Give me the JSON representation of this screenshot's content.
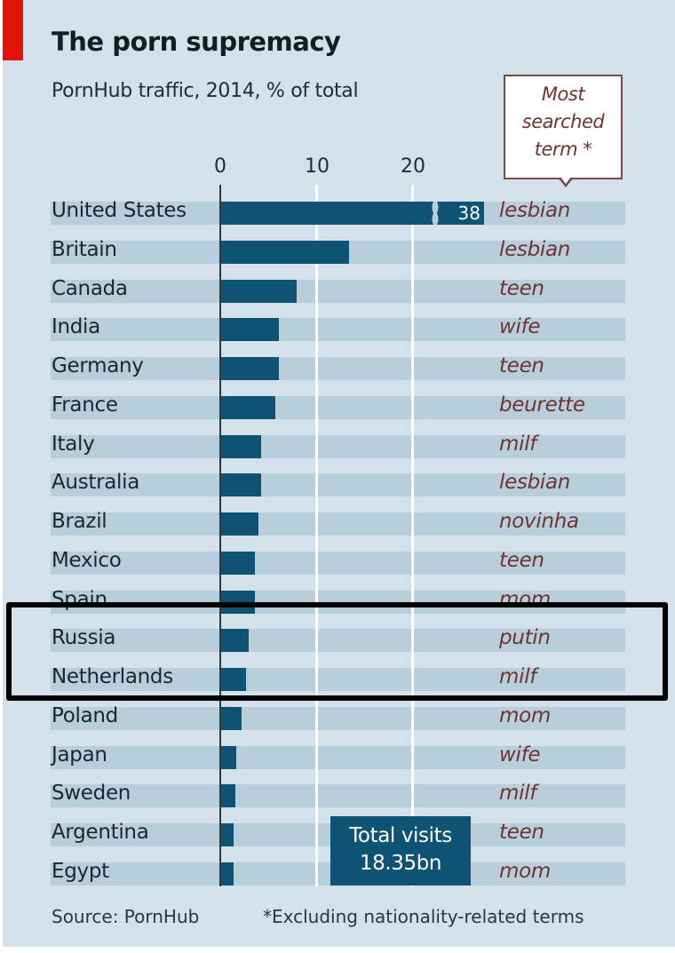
{
  "header": {
    "title": "The porn supremacy",
    "subtitle": "PornHub traffic,  2014, % of total"
  },
  "callout": {
    "line1": "Most",
    "line2": "searched",
    "line3": "term *"
  },
  "axis": {
    "ticks": [
      "0",
      "10",
      "20"
    ]
  },
  "us_break_label": "38",
  "total_box": {
    "line1": "Total visits",
    "line2": "18.35bn"
  },
  "footer": {
    "source": "Source: PornHub",
    "note": "*Excluding nationality-related terms"
  },
  "rows": [
    {
      "country": "United States",
      "term": "lesbian"
    },
    {
      "country": "Britain",
      "term": "lesbian"
    },
    {
      "country": "Canada",
      "term": "teen"
    },
    {
      "country": "India",
      "term": "wife"
    },
    {
      "country": "Germany",
      "term": "teen"
    },
    {
      "country": "France",
      "term": "beurette"
    },
    {
      "country": "Italy",
      "term": "milf"
    },
    {
      "country": "Australia",
      "term": "lesbian"
    },
    {
      "country": "Brazil",
      "term": "novinha"
    },
    {
      "country": "Mexico",
      "term": "teen"
    },
    {
      "country": "Spain",
      "term": "mom"
    },
    {
      "country": "Russia",
      "term": "putin"
    },
    {
      "country": "Netherlands",
      "term": "milf"
    },
    {
      "country": "Poland",
      "term": "mom"
    },
    {
      "country": "Japan",
      "term": "wife"
    },
    {
      "country": "Sweden",
      "term": "milf"
    },
    {
      "country": "Argentina",
      "term": "teen"
    },
    {
      "country": "Egypt",
      "term": "mom"
    }
  ],
  "colors": {
    "background": "#d2e1ea",
    "band": "#b9cedb",
    "bar": "#0e5373",
    "term_text": "#6e3530",
    "red_tag": "#e3120b",
    "highlight_border": "#000000"
  },
  "chart_data": {
    "type": "bar",
    "orientation": "horizontal",
    "title": "The porn supremacy",
    "subtitle": "PornHub traffic, 2014, % of total",
    "xlabel": "% of total",
    "ylabel": "",
    "xlim": [
      0,
      25
    ],
    "xticks": [
      0,
      10,
      20
    ],
    "grid": true,
    "categories": [
      "United States",
      "Britain",
      "Canada",
      "India",
      "Germany",
      "France",
      "Italy",
      "Australia",
      "Brazil",
      "Mexico",
      "Spain",
      "Russia",
      "Netherlands",
      "Poland",
      "Japan",
      "Sweden",
      "Argentina",
      "Egypt"
    ],
    "values": [
      38,
      13.4,
      8.0,
      6.1,
      6.1,
      5.7,
      4.3,
      4.3,
      4.0,
      3.6,
      3.6,
      3.0,
      2.7,
      2.2,
      1.7,
      1.6,
      1.4,
      1.4
    ],
    "annotations": {
      "most_searched_term_header": "Most searched term *",
      "most_searched_terms": [
        "lesbian",
        "lesbian",
        "teen",
        "wife",
        "teen",
        "beurette",
        "milf",
        "lesbian",
        "novinha",
        "teen",
        "mom",
        "putin",
        "milf",
        "mom",
        "wife",
        "milf",
        "teen",
        "mom"
      ],
      "broken_bar": {
        "category": "United States",
        "label": "38"
      },
      "total_visits": "Total visits 18.35bn",
      "highlighted_rows": [
        "Russia",
        "Netherlands"
      ],
      "source": "Source: PornHub",
      "footnote": "*Excluding nationality-related terms"
    }
  }
}
